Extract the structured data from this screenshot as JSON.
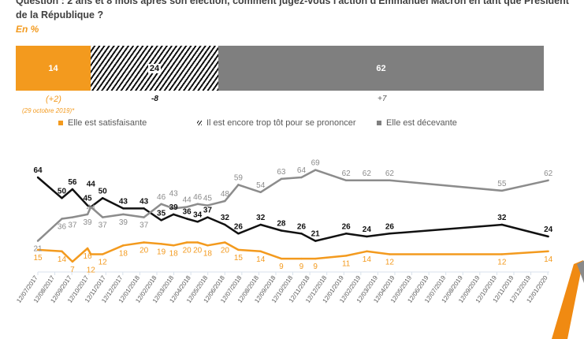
{
  "question": "Question : 2 ans et 8 mois après son élection, comment jugez-vous l'action d'Emmanuel Macron en tant que Président de la République ?",
  "unit": "En %",
  "summary_bar": {
    "segments": [
      {
        "label": "14",
        "value": 14,
        "delta": "(+2)",
        "color": "#f39a1e"
      },
      {
        "label": "24",
        "value": 24,
        "delta": "-8",
        "color": "hatched"
      },
      {
        "label": "62",
        "value": 62,
        "delta": "+7",
        "color": "#7f7f7f"
      }
    ],
    "reference": "(29 octobre 2019)*"
  },
  "legend": [
    "Elle est satisfaisante",
    "Il est encore trop tôt pour se prononcer",
    "Elle est décevante"
  ],
  "chart_data": {
    "type": "line",
    "x_ticks": [
      "12/07/2017",
      "12/08/2017",
      "12/09/2017",
      "12/10/2017",
      "12/11/2017",
      "12/12/2017",
      "12/01/2018",
      "12/02/2018",
      "12/03/2018",
      "12/04/2018",
      "12/05/2018",
      "12/06/2018",
      "12/07/2018",
      "12/08/2018",
      "12/09/2018",
      "12/10/2018",
      "12/11/2018",
      "12/12/2018",
      "12/01/2019",
      "12/02/2019",
      "12/03/2019",
      "12/04/2019",
      "12/05/2019",
      "12/06/2019",
      "12/07/2019",
      "12/08/2019",
      "12/09/2019",
      "12/10/2019",
      "12/11/2019",
      "12/12/2019",
      "12/01/2020"
    ],
    "x": [
      "2017-07-12",
      "2017-08-24",
      "2017-09-12",
      "2017-10-09",
      "2017-10-15",
      "2017-11-05",
      "2017-12-12",
      "2018-01-18",
      "2018-02-18",
      "2018-03-12",
      "2018-04-05",
      "2018-04-24",
      "2018-05-12",
      "2018-06-12",
      "2018-07-06",
      "2018-08-15",
      "2018-09-21",
      "2018-10-27",
      "2018-11-21",
      "2019-01-15",
      "2019-02-21",
      "2019-04-03",
      "2019-10-21",
      "2020-01-12"
    ],
    "ylim": [
      0,
      70
    ],
    "grid": false,
    "series": [
      {
        "name": "Elle est satisfaisante",
        "color": "#f39a1e",
        "values": [
          15,
          14,
          7,
          16,
          12,
          12,
          18,
          20,
          19,
          18,
          20,
          20,
          18,
          20,
          15,
          14,
          9,
          9,
          9,
          11,
          14,
          12,
          12,
          14
        ]
      },
      {
        "name": "Il est encore trop tôt pour se prononcer",
        "color": "#111111",
        "values": [
          64,
          50,
          56,
          45,
          44,
          50,
          43,
          43,
          35,
          39,
          36,
          34,
          37,
          32,
          26,
          32,
          28,
          26,
          21,
          26,
          24,
          26,
          32,
          24
        ]
      },
      {
        "name": "Elle est décevante",
        "color": "#8c8c8c",
        "values": [
          21,
          36,
          37,
          39,
          44,
          37,
          39,
          37,
          46,
          43,
          44,
          46,
          45,
          48,
          59,
          54,
          63,
          64,
          69,
          62,
          62,
          62,
          55,
          62
        ]
      }
    ]
  }
}
